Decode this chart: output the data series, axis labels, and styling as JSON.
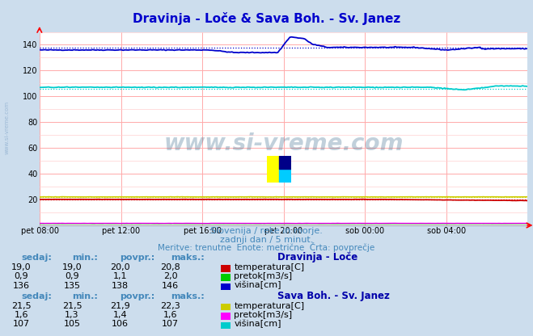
{
  "title": "Dravinja - Loče & Sava Boh. - Sv. Janez",
  "title_color": "#0000cc",
  "bg_color": "#ccdded",
  "plot_bg_color": "#ffffff",
  "grid_color_major": "#ffaaaa",
  "grid_color_minor": "#ffd0d0",
  "xlabel_ticks": [
    "pet 08:00",
    "pet 12:00",
    "pet 16:00",
    "pet 20:00",
    "sob 00:00",
    "sob 04:00"
  ],
  "ylim": [
    0,
    150
  ],
  "yticks": [
    20,
    40,
    60,
    80,
    100,
    120,
    140
  ],
  "subtitle1": "Slovenija / reke in morje.",
  "subtitle2": "zadnji dan / 5 minut.",
  "subtitle3": "Meritve: trenutne  Enote: metrične  Črta: povprečje",
  "watermark": "www.si-vreme.com",
  "table1_title": "Dravinja - Loče",
  "table2_title": "Sava Boh. - Sv. Janez",
  "table1_rows": [
    {
      "sedaj": "19,0",
      "min": "19,0",
      "povpr": "20,0",
      "maks": "20,8",
      "color": "#cc0000",
      "label": "temperatura[C]"
    },
    {
      "sedaj": "0,9",
      "min": "0,9",
      "povpr": "1,1",
      "maks": "2,0",
      "color": "#00cc00",
      "label": "pretok[m3/s]"
    },
    {
      "sedaj": "136",
      "min": "135",
      "povpr": "138",
      "maks": "146",
      "color": "#0000cc",
      "label": "višina[cm]"
    }
  ],
  "table2_rows": [
    {
      "sedaj": "21,5",
      "min": "21,5",
      "povpr": "21,9",
      "maks": "22,3",
      "color": "#cccc00",
      "label": "temperatura[C]"
    },
    {
      "sedaj": "1,6",
      "min": "1,3",
      "povpr": "1,4",
      "maks": "1,6",
      "color": "#ff00ff",
      "label": "pretok[m3/s]"
    },
    {
      "sedaj": "107",
      "min": "105",
      "povpr": "106",
      "maks": "107",
      "color": "#00cccc",
      "label": "višina[cm]"
    }
  ],
  "text_color": "#4488bb",
  "header_color": "#0000aa",
  "dravinja_visina_color": "#0000cc",
  "dravinja_temp_color": "#cc0000",
  "dravinja_pretok_color": "#00cc00",
  "sava_visina_color": "#00cccc",
  "sava_temp_color": "#cccc00",
  "sava_pretok_color": "#ff00ff"
}
